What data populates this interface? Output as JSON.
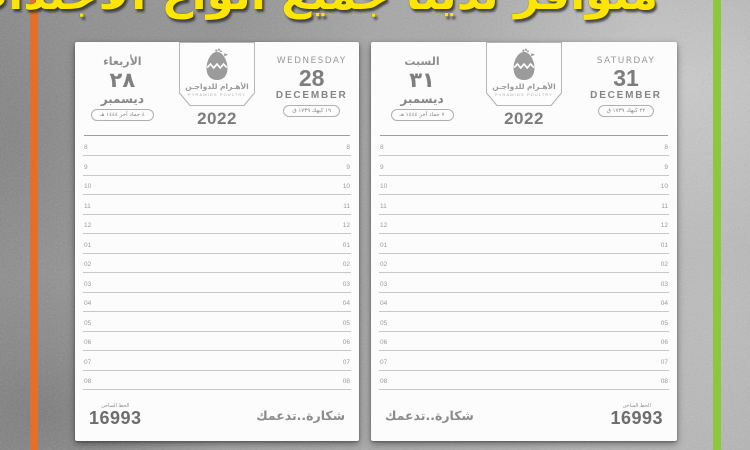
{
  "banner": {
    "text": "متوافر لدينا جميع أنواع الأجندات",
    "color": "#ffe600"
  },
  "accents": {
    "left_bar_color": "#e2702a",
    "right_bar_color": "#8dc63f"
  },
  "brand": {
    "logo_icon": "hatching-egg-icon",
    "name_ar": "الأهـرام للدواجـن",
    "name_en": "PYRAMIDS POULTRY",
    "year": "2022"
  },
  "hours": [
    "8",
    "9",
    "10",
    "11",
    "12",
    "01",
    "02",
    "03",
    "04",
    "05",
    "06",
    "07",
    "08"
  ],
  "footer": {
    "hotline_label": "الخط الساخن",
    "hotline_number": "16993",
    "slogan": "شكارة..تدعمك"
  },
  "pages": [
    {
      "day_ar": "الأربعاء",
      "day_num_ar": "٢٨",
      "month_ar": "ديسمبر",
      "hijri_date": "٤ جماد آخر ١٤٤٤ هـ",
      "day_en": "WEDNESDAY",
      "day_num_en": "28",
      "month_en": "DECEMBER",
      "coptic_date": "١٩ كيهك ١٧٣٩ ق"
    },
    {
      "day_ar": "السبت",
      "day_num_ar": "٣١",
      "month_ar": "ديسمبر",
      "hijri_date": "٧ جماد آخر ١٤٤٤ هـ",
      "day_en": "SATURDAY",
      "day_num_en": "31",
      "month_en": "DECEMBER",
      "coptic_date": "٢٢ كيهك ١٧٣٩ ق"
    }
  ]
}
